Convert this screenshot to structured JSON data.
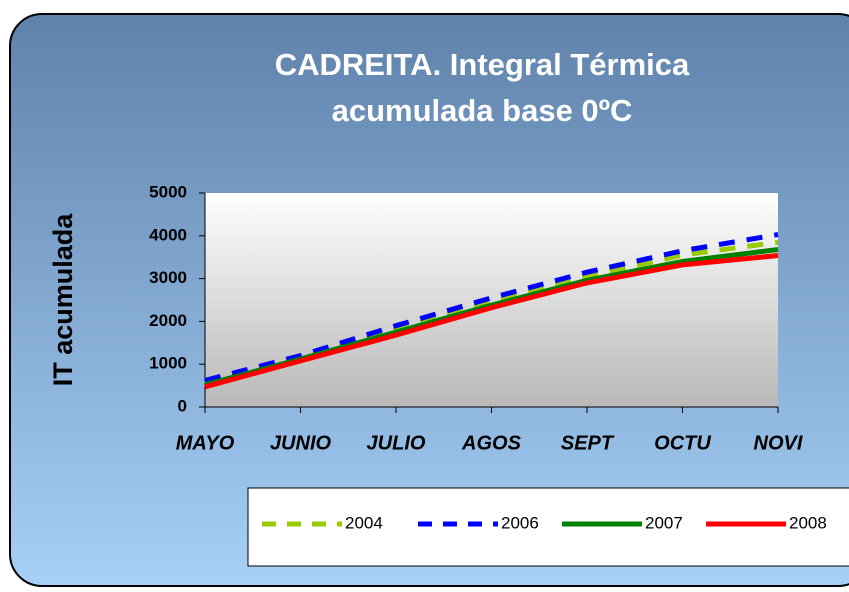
{
  "chart_data": {
    "type": "line",
    "title_lines": [
      "CADREITA.  Integral Térmica",
      "acumulada base 0ºC"
    ],
    "y_label": "IT acumulada",
    "categories": [
      "MAYO",
      "JUNIO",
      "JULIO",
      "AGOS",
      "SEPT",
      "OCTU",
      "NOVI"
    ],
    "series": [
      {
        "name": "2004",
        "color": "#99cc00",
        "line_style": "dashed",
        "values": [
          550,
          1150,
          1800,
          2450,
          3050,
          3550,
          3850
        ]
      },
      {
        "name": "2006",
        "color": "#0000ff",
        "line_style": "dashed",
        "values": [
          620,
          1200,
          1900,
          2550,
          3150,
          3650,
          4030
        ]
      },
      {
        "name": "2007",
        "color": "#008000",
        "line_style": "solid",
        "values": [
          520,
          1120,
          1750,
          2380,
          2960,
          3400,
          3680
        ]
      },
      {
        "name": "2008",
        "color": "#ff0000",
        "line_style": "solid",
        "values": [
          470,
          1080,
          1680,
          2320,
          2900,
          3320,
          3540
        ]
      }
    ],
    "ylim": [
      0,
      5000
    ],
    "yticks": [
      0,
      1000,
      2000,
      3000,
      4000,
      5000
    ],
    "legend": "bottom"
  }
}
